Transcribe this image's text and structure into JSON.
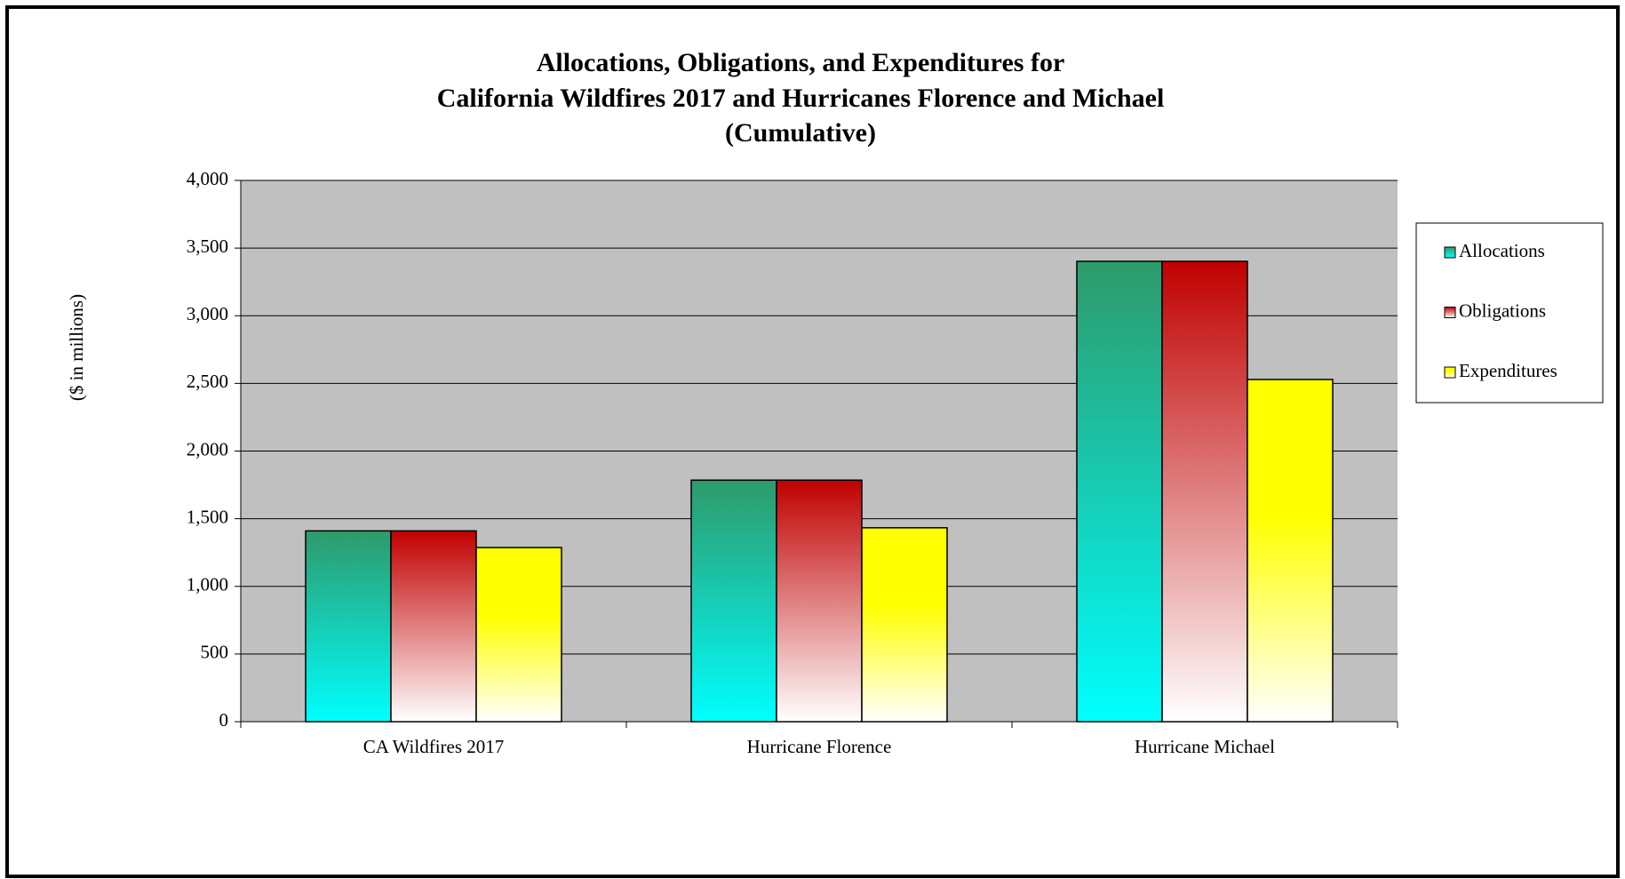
{
  "chart_data": {
    "type": "bar",
    "title": [
      "Allocations, Obligations, and Expenditures for",
      "California Wildfires 2017 and Hurricanes Florence and Michael",
      "(Cumulative)"
    ],
    "y_label": "($ in millions)",
    "categories": [
      "CA Wildfires 2017",
      "Hurricane Florence",
      "Hurricane Michael"
    ],
    "series": [
      {
        "name": "Allocations",
        "color": "#2e9a6a",
        "values": [
          1410,
          1785,
          3402
        ]
      },
      {
        "name": "Obligations",
        "color": "#c00000",
        "values": [
          1410,
          1785,
          3402
        ]
      },
      {
        "name": "Expenditures",
        "color": "#ffff00",
        "values": [
          1287,
          1433,
          2529
        ]
      }
    ],
    "ylim": [
      0,
      4000
    ],
    "yticks": [
      0,
      {
        "value": 500,
        "label": "500"
      },
      {
        "value": 1000,
        "label": "1,000"
      },
      {
        "value": 1500,
        "label": "1,500"
      },
      {
        "value": 2000,
        "label": "2,000"
      },
      {
        "value": 2500,
        "label": "2,500"
      },
      {
        "value": 3000,
        "label": "3,000"
      },
      {
        "value": 3500,
        "label": "3,500"
      },
      {
        "value": 4000,
        "label": "4,000"
      }
    ],
    "grid": true,
    "legend": "right"
  }
}
